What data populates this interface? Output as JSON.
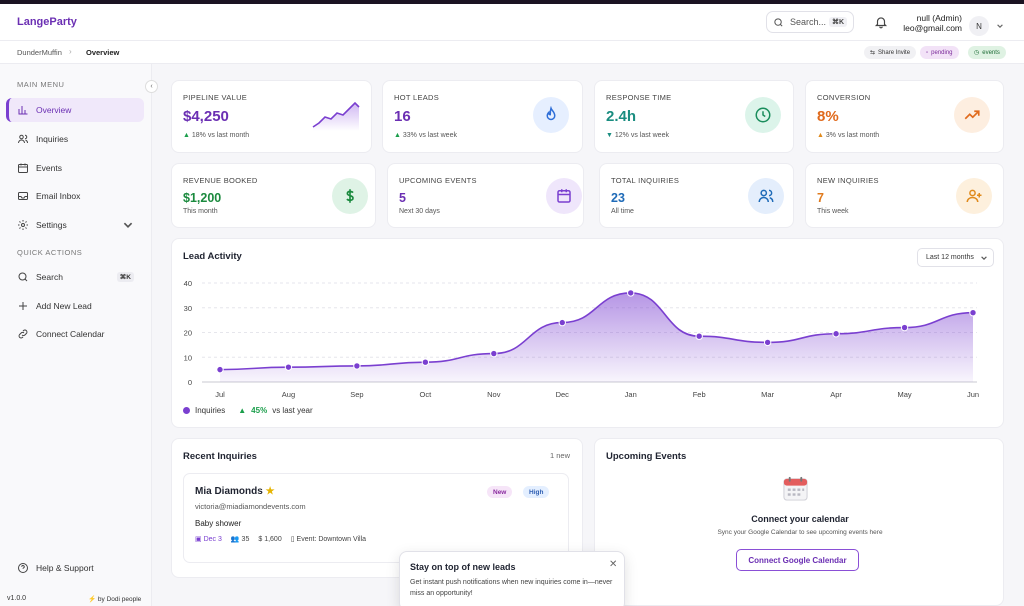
{
  "app": {
    "name": "LangeParty"
  },
  "search": {
    "label": "Search...",
    "shortcut": "⌘K"
  },
  "user": {
    "name": "null (Admin)",
    "email": "leo@gmail.com",
    "initial": "N"
  },
  "breadcrumb": {
    "org": "DunderMuffin",
    "page": "Overview"
  },
  "header_pills": {
    "share": "Share Invite",
    "pending": "pending",
    "events": "events"
  },
  "sidebar": {
    "main_heading": "MAIN MENU",
    "items": [
      {
        "label": "Overview",
        "icon": "bar-chart-icon"
      },
      {
        "label": "Inquiries",
        "icon": "users-icon"
      },
      {
        "label": "Events",
        "icon": "calendar-icon"
      },
      {
        "label": "Email Inbox",
        "icon": "inbox-icon"
      },
      {
        "label": "Settings",
        "icon": "gear-icon"
      }
    ],
    "quick_heading": "QUICK ACTIONS",
    "quick": [
      {
        "label": "Search",
        "shortcut": "⌘K"
      },
      {
        "label": "Add New Lead"
      },
      {
        "label": "Connect Calendar"
      }
    ],
    "help": "Help & Support",
    "version": "v1.0.0",
    "byline": "by Dodi people"
  },
  "stats": [
    {
      "label": "PIPELINE VALUE",
      "value": "$4,250",
      "sub": "18% vs last month",
      "color": "#6b2fb3",
      "trend": "up"
    },
    {
      "label": "HOT LEADS",
      "value": "16",
      "sub": "33% vs last week",
      "color": "#6b2fb3",
      "trend": "up"
    },
    {
      "label": "RESPONSE TIME",
      "value": "2.4h",
      "sub": "12% vs last week",
      "color": "#1a8d80",
      "trend": "down"
    },
    {
      "label": "CONVERSION",
      "value": "8%",
      "sub": "3% vs last month",
      "color": "#e06a1c",
      "trend": "up"
    },
    {
      "label": "REVENUE BOOKED",
      "value": "$1,200",
      "sub": "This month",
      "color": "#1b8a3e"
    },
    {
      "label": "UPCOMING EVENTS",
      "value": "5",
      "sub": "Next 30 days",
      "color": "#6b2fb3"
    },
    {
      "label": "TOTAL INQUIRIES",
      "value": "23",
      "sub": "All time",
      "color": "#1f6bb8"
    },
    {
      "label": "NEW INQUIRIES",
      "value": "7",
      "sub": "This week",
      "color": "#e07a1c"
    }
  ],
  "chart": {
    "title": "Lead Activity",
    "range": "Last 12 months",
    "legend": "Inquiries",
    "delta": "45%",
    "delta_text": "vs last year"
  },
  "chart_data": {
    "type": "area",
    "categories": [
      "Jul",
      "Aug",
      "Sep",
      "Oct",
      "Nov",
      "Dec",
      "Jan",
      "Feb",
      "Mar",
      "Apr",
      "May",
      "Jun"
    ],
    "series": [
      {
        "name": "Inquiries",
        "values": [
          5,
          6,
          6.5,
          8,
          11.5,
          24,
          36,
          18.5,
          16,
          19.5,
          22,
          28
        ]
      }
    ],
    "yticks": [
      0,
      10,
      20,
      30,
      40
    ],
    "ylim": [
      0,
      40
    ],
    "grid": true,
    "color": "#7a3fd0"
  },
  "recent": {
    "title": "Recent Inquiries",
    "count": "1 new",
    "item": {
      "name": "Mia Diamonds",
      "email": "victoria@miadiamondevents.com",
      "type": "Baby shower",
      "date": "Dec 3",
      "guests": "35",
      "budget": "1,600",
      "venue": "Event: Downtown Villa",
      "tag_new": "New",
      "tag_priority": "High"
    }
  },
  "upcoming": {
    "title": "Upcoming Events",
    "empty_title": "Connect your calendar",
    "empty_sub": "Sync your Google Calendar to see upcoming events here",
    "button": "Connect Google Calendar"
  },
  "toast": {
    "title": "Stay on top of new leads",
    "body": "Get instant push notifications when new inquiries come in—never miss an opportunity!"
  }
}
